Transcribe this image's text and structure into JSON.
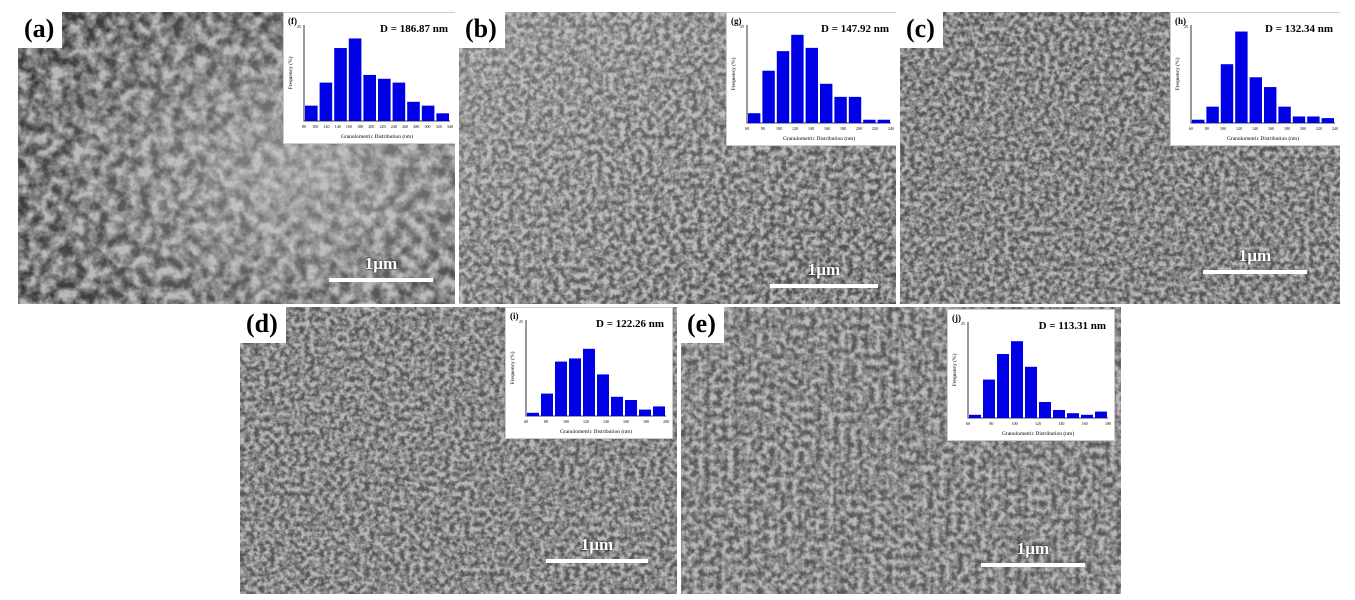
{
  "colors": {
    "bar": "#0000e6",
    "scale_bar": "#ffffff",
    "panel_label_bg": "#ffffff"
  },
  "panels": [
    {
      "id": "a",
      "label": "(a)",
      "scale_label": "1µm",
      "inset": {
        "label": "(f)",
        "d_text": "D = 186.87 nm",
        "xlabel": "Granulometric Distribution (nm)",
        "ylabel": "Frequency (%)",
        "ticks": [
          "80",
          "100",
          "120",
          "140",
          "160",
          "180",
          "200",
          "220",
          "240",
          "260",
          "280",
          "300",
          "320",
          "340"
        ],
        "ytick": "25",
        "values": [
          4,
          10,
          19,
          21.5,
          12,
          11,
          10,
          5,
          4,
          2
        ],
        "ymax": 25
      }
    },
    {
      "id": "b",
      "label": "(b)",
      "scale_label": "1µm",
      "inset": {
        "label": "(g)",
        "d_text": "D = 147.92 nm",
        "xlabel": "Granulometric Distribution (nm)",
        "ylabel": "Frequency (%)",
        "ticks": [
          "60",
          "80",
          "100",
          "120",
          "140",
          "160",
          "180",
          "200",
          "220",
          "240"
        ],
        "ytick": "25",
        "values": [
          3,
          16,
          22,
          27,
          23,
          12,
          8,
          8,
          1,
          1
        ],
        "ymax": 30
      }
    },
    {
      "id": "c",
      "label": "(c)",
      "scale_label": "1µm",
      "inset": {
        "label": "(h)",
        "d_text": "D = 132.34 nm",
        "xlabel": "Granulometric Distribution (nm)",
        "ylabel": "Frequency (%)",
        "ticks": [
          "60",
          "80",
          "100",
          "120",
          "140",
          "160",
          "180",
          "200",
          "220",
          "240"
        ],
        "ytick": "25",
        "values": [
          1,
          5,
          18,
          28,
          14,
          11,
          5,
          2,
          2,
          1.5
        ],
        "ymax": 30
      }
    },
    {
      "id": "d",
      "label": "(d)",
      "scale_label": "1µm",
      "inset": {
        "label": "(i)",
        "d_text": "D = 122.26 nm",
        "xlabel": "Granulometric Distribution (nm)",
        "ylabel": "Frequency (%)",
        "ticks": [
          "60",
          "80",
          "100",
          "120",
          "140",
          "160",
          "180",
          "200"
        ],
        "ytick": "25",
        "values": [
          1,
          7,
          17,
          18,
          21,
          13,
          6,
          5,
          2,
          3
        ],
        "ymax": 30
      }
    },
    {
      "id": "e",
      "label": "(e)",
      "scale_label": "1µm",
      "inset": {
        "label": "(j)",
        "d_text": "D = 113.31 nm",
        "xlabel": "Granulometric Distribution (nm)",
        "ylabel": "Frequency (%)",
        "ticks": [
          "60",
          "80",
          "100",
          "120",
          "140",
          "160",
          "180"
        ],
        "ytick": "25",
        "values": [
          1,
          12,
          20,
          24,
          16,
          5,
          2.5,
          1.5,
          1,
          2
        ],
        "ymax": 30
      }
    }
  ]
}
